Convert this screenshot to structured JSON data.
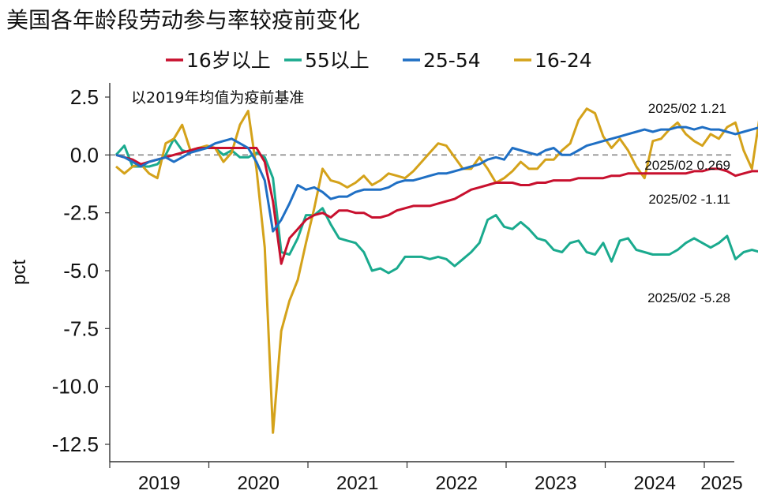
{
  "title": "美国各年龄段劳动参与率较疫前变化",
  "chart_data": {
    "type": "line",
    "title": "美国各年龄段劳动参与率较疫前变化",
    "note": "以2019年均值为疫前基准",
    "ylabel": "pct",
    "xlabel": "",
    "ylim": [
      -12.5,
      2.5
    ],
    "yticks": [
      2.5,
      0.0,
      -2.5,
      -5.0,
      -7.5,
      -10.0,
      -12.5
    ],
    "ytick_labels": [
      "2.5",
      "0.0",
      "-2.5",
      "-5.0",
      "-7.5",
      "-10.0",
      "-12.5"
    ],
    "xticks": [
      "2019",
      "2020",
      "2021",
      "2022",
      "2023",
      "2024",
      "2025"
    ],
    "x_start": "2019-01",
    "x_end": "2025-02",
    "legend_position": "top",
    "zero_line": "dashed",
    "series": [
      {
        "name": "16岁以上",
        "color": "#c8102e",
        "values": [
          0.0,
          -0.1,
          -0.2,
          -0.4,
          -0.3,
          -0.2,
          -0.1,
          0.0,
          0.1,
          0.2,
          0.3,
          0.3,
          0.3,
          0.3,
          0.3,
          0.3,
          0.3,
          0.3,
          -0.3,
          -2.0,
          -4.7,
          -3.6,
          -3.2,
          -2.8,
          -2.6,
          -2.5,
          -2.7,
          -2.4,
          -2.4,
          -2.5,
          -2.5,
          -2.7,
          -2.7,
          -2.6,
          -2.4,
          -2.3,
          -2.2,
          -2.2,
          -2.2,
          -2.1,
          -2.0,
          -1.9,
          -1.7,
          -1.5,
          -1.4,
          -1.3,
          -1.2,
          -1.2,
          -1.2,
          -1.3,
          -1.3,
          -1.2,
          -1.2,
          -1.1,
          -1.1,
          -1.1,
          -1.0,
          -1.0,
          -1.0,
          -1.0,
          -0.9,
          -0.9,
          -0.8,
          -0.8,
          -0.8,
          -0.8,
          -0.8,
          -0.8,
          -0.8,
          -0.8,
          -0.7,
          -0.7,
          -0.6,
          -0.6,
          -0.7,
          -0.9,
          -0.8,
          -0.7,
          -0.7,
          -0.7,
          -0.7,
          -0.6,
          -0.6,
          -0.8,
          -0.9,
          -1.0,
          -1.0,
          -1.0,
          -0.9,
          -0.8,
          -1.0,
          -1.11
        ],
        "last_label": "2025/02 -1.11"
      },
      {
        "name": "55以上",
        "color": "#1aaa8e",
        "values": [
          0.0,
          0.4,
          -0.5,
          -0.5,
          -0.5,
          -0.4,
          0.0,
          0.7,
          0.2,
          0.1,
          0.3,
          0.3,
          0.3,
          0.0,
          0.2,
          -0.1,
          -0.1,
          0.1,
          -0.1,
          -1.0,
          -4.2,
          -4.3,
          -3.6,
          -2.6,
          -2.6,
          -2.3,
          -3.0,
          -3.6,
          -3.7,
          -3.8,
          -4.2,
          -5.0,
          -4.9,
          -5.1,
          -4.9,
          -4.4,
          -4.4,
          -4.4,
          -4.5,
          -4.4,
          -4.5,
          -4.8,
          -4.5,
          -4.2,
          -3.8,
          -2.8,
          -2.6,
          -3.1,
          -3.2,
          -2.9,
          -3.2,
          -3.6,
          -3.7,
          -4.1,
          -4.2,
          -3.8,
          -3.7,
          -4.2,
          -4.3,
          -3.8,
          -4.6,
          -3.7,
          -3.6,
          -4.1,
          -4.2,
          -4.3,
          -4.3,
          -4.3,
          -4.1,
          -3.8,
          -3.6,
          -3.8,
          -4.0,
          -3.8,
          -3.5,
          -4.5,
          -4.2,
          -4.1,
          -4.2,
          -4.4,
          -4.6,
          -4.9,
          -4.7,
          -4.7,
          -4.3,
          -4.3,
          -4.1,
          -4.4,
          -4.6,
          -4.7,
          -4.5,
          -5.28
        ],
        "last_label": "2025/02 -5.28"
      },
      {
        "name": "25-54",
        "color": "#1f6fc4",
        "values": [
          0.0,
          -0.1,
          -0.3,
          -0.5,
          -0.3,
          -0.2,
          -0.1,
          -0.3,
          -0.1,
          0.1,
          0.2,
          0.3,
          0.5,
          0.6,
          0.7,
          0.5,
          0.3,
          -0.3,
          -1.1,
          -3.3,
          -2.8,
          -2.1,
          -1.3,
          -1.5,
          -1.4,
          -1.6,
          -1.9,
          -1.8,
          -1.8,
          -1.6,
          -1.5,
          -1.5,
          -1.5,
          -1.4,
          -1.2,
          -1.1,
          -1.1,
          -1.0,
          -0.9,
          -0.8,
          -0.8,
          -0.7,
          -0.6,
          -0.5,
          -0.4,
          -0.2,
          -0.1,
          -0.2,
          0.3,
          0.2,
          0.1,
          0.0,
          0.2,
          0.3,
          0.0,
          0.0,
          0.2,
          0.4,
          0.5,
          0.6,
          0.7,
          0.8,
          0.9,
          1.0,
          1.1,
          1.0,
          1.1,
          1.1,
          1.2,
          1.2,
          1.1,
          1.2,
          1.1,
          1.1,
          1.0,
          0.9,
          1.0,
          1.1,
          1.2,
          1.3,
          1.4,
          1.5,
          1.7,
          1.7,
          1.6,
          1.5,
          1.4,
          1.2,
          1.2,
          1.1,
          1.1,
          1.21
        ],
        "last_label": "2025/02 1.21"
      },
      {
        "name": "16-24",
        "color": "#d4a21a",
        "values": [
          -0.5,
          -0.8,
          -0.5,
          -0.4,
          -0.8,
          -1.0,
          0.5,
          0.7,
          1.3,
          0.2,
          0.3,
          0.4,
          0.3,
          -0.3,
          0.1,
          1.3,
          1.9,
          -0.6,
          -4.0,
          -12.0,
          -7.6,
          -6.3,
          -5.4,
          -3.8,
          -2.3,
          -0.6,
          -1.1,
          -1.2,
          -1.4,
          -1.2,
          -0.9,
          -1.3,
          -1.1,
          -0.8,
          -0.9,
          -1.0,
          -0.7,
          -0.3,
          0.1,
          0.5,
          0.4,
          -0.1,
          -0.6,
          -0.6,
          -0.1,
          -0.6,
          -1.2,
          -1.0,
          -0.7,
          -0.3,
          -0.6,
          -0.6,
          -0.2,
          -0.2,
          0.2,
          0.5,
          1.5,
          2.0,
          1.8,
          0.8,
          0.3,
          0.7,
          0.2,
          -0.5,
          -1.0,
          0.6,
          0.7,
          1.1,
          1.4,
          0.9,
          0.6,
          0.4,
          0.9,
          0.7,
          1.2,
          1.4,
          0.2,
          -0.6,
          1.8,
          1.7,
          0.7,
          -0.3,
          -0.8,
          -1.7,
          -0.4,
          0.9,
          1.5,
          -0.9,
          0.6,
          0.9,
          0.8,
          0.269
        ],
        "last_label": "2025/02 0.269"
      }
    ]
  }
}
